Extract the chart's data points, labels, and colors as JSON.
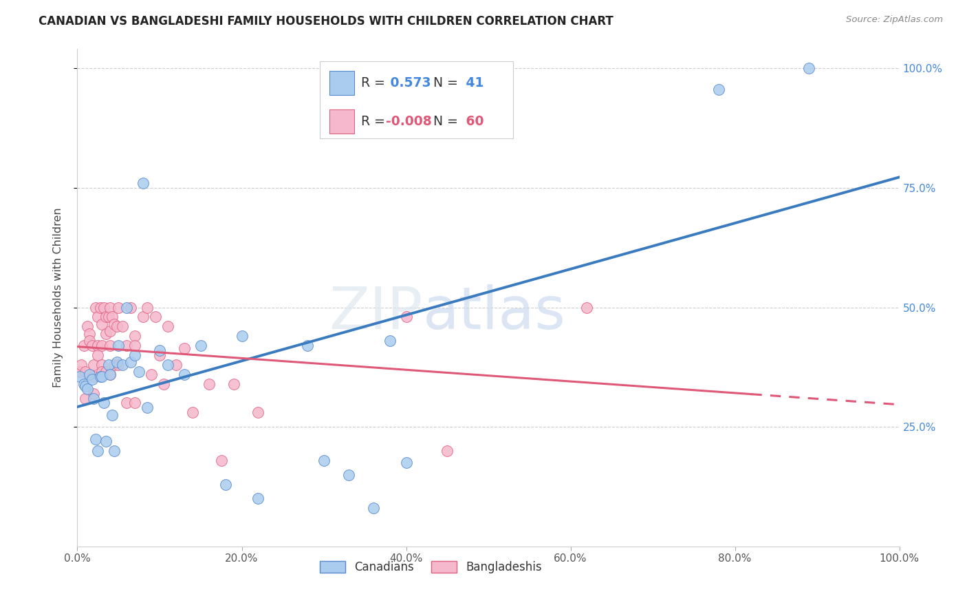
{
  "title": "CANADIAN VS BANGLADESHI FAMILY HOUSEHOLDS WITH CHILDREN CORRELATION CHART",
  "source": "Source: ZipAtlas.com",
  "ylabel": "Family Households with Children",
  "background_color": "#ffffff",
  "grid_color": "#cccccc",
  "canadians": {
    "R": 0.573,
    "N": 41,
    "scatter_color": "#aaccee",
    "edge_color": "#5588cc",
    "line_color": "#3a7abf",
    "x": [
      0.003,
      0.008,
      0.01,
      0.012,
      0.015,
      0.018,
      0.02,
      0.022,
      0.025,
      0.028,
      0.03,
      0.032,
      0.035,
      0.038,
      0.04,
      0.042,
      0.045,
      0.048,
      0.05,
      0.055,
      0.06,
      0.065,
      0.07,
      0.075,
      0.08,
      0.085,
      0.1,
      0.11,
      0.13,
      0.15,
      0.18,
      0.2,
      0.22,
      0.28,
      0.3,
      0.33,
      0.36,
      0.38,
      0.4,
      0.78,
      0.89
    ],
    "y": [
      0.355,
      0.34,
      0.335,
      0.33,
      0.36,
      0.35,
      0.31,
      0.225,
      0.2,
      0.355,
      0.355,
      0.3,
      0.22,
      0.38,
      0.36,
      0.275,
      0.2,
      0.385,
      0.42,
      0.38,
      0.5,
      0.385,
      0.4,
      0.365,
      0.76,
      0.29,
      0.41,
      0.38,
      0.36,
      0.42,
      0.13,
      0.44,
      0.1,
      0.42,
      0.18,
      0.15,
      0.08,
      0.43,
      0.175,
      0.955,
      1.0
    ]
  },
  "bangladeshis": {
    "R": -0.008,
    "N": 60,
    "scatter_color": "#f5b8cc",
    "edge_color": "#e06080",
    "line_color": "#e05878",
    "x": [
      0.003,
      0.005,
      0.008,
      0.01,
      0.01,
      0.012,
      0.015,
      0.015,
      0.018,
      0.02,
      0.02,
      0.02,
      0.022,
      0.025,
      0.025,
      0.025,
      0.028,
      0.03,
      0.03,
      0.03,
      0.03,
      0.032,
      0.035,
      0.035,
      0.035,
      0.038,
      0.04,
      0.04,
      0.04,
      0.04,
      0.042,
      0.045,
      0.045,
      0.048,
      0.05,
      0.05,
      0.055,
      0.06,
      0.06,
      0.065,
      0.07,
      0.07,
      0.07,
      0.08,
      0.085,
      0.09,
      0.095,
      0.1,
      0.105,
      0.11,
      0.12,
      0.13,
      0.14,
      0.16,
      0.175,
      0.19,
      0.22,
      0.4,
      0.45,
      0.62
    ],
    "y": [
      0.365,
      0.38,
      0.42,
      0.365,
      0.31,
      0.46,
      0.445,
      0.43,
      0.42,
      0.38,
      0.355,
      0.32,
      0.5,
      0.48,
      0.42,
      0.4,
      0.5,
      0.465,
      0.42,
      0.38,
      0.365,
      0.5,
      0.48,
      0.445,
      0.365,
      0.48,
      0.5,
      0.45,
      0.42,
      0.36,
      0.48,
      0.38,
      0.465,
      0.46,
      0.38,
      0.5,
      0.46,
      0.42,
      0.3,
      0.5,
      0.44,
      0.42,
      0.3,
      0.48,
      0.5,
      0.36,
      0.48,
      0.4,
      0.34,
      0.46,
      0.38,
      0.415,
      0.28,
      0.34,
      0.18,
      0.34,
      0.28,
      0.48,
      0.2,
      0.5
    ]
  },
  "xlim": [
    0.0,
    1.0
  ],
  "ylim": [
    0.0,
    1.04
  ],
  "xtick_vals": [
    0.0,
    0.2,
    0.4,
    0.6,
    0.8,
    1.0
  ],
  "xtick_labels": [
    "0.0%",
    "20.0%",
    "40.0%",
    "60.0%",
    "80.0%",
    "100.0%"
  ],
  "ytick_vals": [
    0.25,
    0.5,
    0.75,
    1.0
  ],
  "ytick_labels": [
    "25.0%",
    "50.0%",
    "75.0%",
    "100.0%"
  ],
  "watermark_zip": "ZIP",
  "watermark_atlas": "atlas",
  "legend_canadians": "Canadians",
  "legend_bangladeshis": "Bangladeshis",
  "legend_r_can": "0.573",
  "legend_n_can": "41",
  "legend_r_ban": "-0.008",
  "legend_n_ban": "60"
}
